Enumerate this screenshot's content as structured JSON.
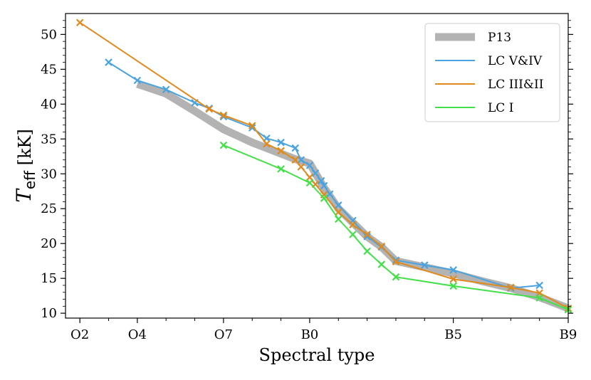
{
  "chart_data": {
    "type": "line",
    "xlabel": "Spectral type",
    "ylabel_main": "T",
    "ylabel_sub": "eff",
    "ylabel_unit": " [kK]",
    "xlim": [
      1.5,
      19
    ],
    "ylim": [
      9.3,
      53
    ],
    "x_ticks": [
      {
        "value": 2,
        "label": "O2"
      },
      {
        "value": 4,
        "label": "O4"
      },
      {
        "value": 7,
        "label": "O7"
      },
      {
        "value": 10,
        "label": "B0"
      },
      {
        "value": 15,
        "label": "B5"
      },
      {
        "value": 19,
        "label": "B9"
      }
    ],
    "x_minor_ticks": [
      3,
      5,
      6,
      8,
      9,
      11,
      12,
      13,
      14,
      16,
      17,
      18
    ],
    "y_ticks": [
      10,
      15,
      20,
      25,
      30,
      35,
      40,
      45,
      50
    ],
    "legend_position": "top-right",
    "series": [
      {
        "name": "P13",
        "color": "#b3b3b3",
        "style": "thick-band",
        "markers": false,
        "points": [
          [
            4,
            42.9
          ],
          [
            5,
            41.5
          ],
          [
            6,
            39.0
          ],
          [
            7,
            36.4
          ],
          [
            8,
            34.5
          ],
          [
            9,
            32.9
          ],
          [
            9.5,
            32.1
          ],
          [
            10,
            31.5
          ],
          [
            10.5,
            28.0
          ],
          [
            11,
            25.0
          ],
          [
            12,
            21.0
          ],
          [
            12.5,
            19.5
          ],
          [
            13,
            17.5
          ],
          [
            14,
            16.6
          ],
          [
            15,
            15.7
          ],
          [
            16,
            14.6
          ],
          [
            17,
            13.6
          ],
          [
            18,
            12.3
          ],
          [
            19,
            10.7
          ]
        ]
      },
      {
        "name": "LC V&IV",
        "color": "#4aa3df",
        "style": "line",
        "markers": true,
        "points": [
          [
            3,
            46.0
          ],
          [
            4,
            43.4
          ],
          [
            5,
            42.1
          ],
          [
            6,
            40.2
          ],
          [
            6.5,
            39.4
          ],
          [
            7,
            38.2
          ],
          [
            8,
            36.6
          ],
          [
            8.5,
            35.1
          ],
          [
            9,
            34.5
          ],
          [
            9.5,
            33.7
          ],
          [
            9.7,
            32.0
          ],
          [
            10,
            31.2
          ],
          [
            10.2,
            30.1
          ],
          [
            10.4,
            29.0
          ],
          [
            10.5,
            28.3
          ],
          [
            10.7,
            27.1
          ],
          [
            11,
            25.5
          ],
          [
            11.5,
            23.3
          ],
          [
            12,
            21.0
          ],
          [
            12.5,
            19.5
          ],
          [
            13,
            17.6
          ],
          [
            14,
            16.9
          ],
          [
            15,
            16.2
          ],
          [
            17,
            13.6
          ],
          [
            18,
            14.0
          ]
        ]
      },
      {
        "name": "LC III&II",
        "color": "#e08a1c",
        "style": "line",
        "markers": true,
        "points": [
          [
            2,
            51.7
          ],
          [
            6.5,
            39.3
          ],
          [
            7,
            38.4
          ],
          [
            8,
            36.9
          ],
          [
            8.5,
            34.3
          ],
          [
            9,
            33.3
          ],
          [
            9.5,
            32.0
          ],
          [
            9.7,
            31.0
          ],
          [
            10,
            29.5
          ],
          [
            10.2,
            28.5
          ],
          [
            10.5,
            27.0
          ],
          [
            11,
            24.5
          ],
          [
            11.5,
            22.7
          ],
          [
            12,
            21.3
          ],
          [
            12.5,
            19.6
          ],
          [
            13,
            17.4
          ],
          [
            15,
            14.9
          ],
          [
            17,
            13.7
          ],
          [
            18,
            12.9
          ],
          [
            19,
            10.7
          ]
        ]
      },
      {
        "name": "LC I",
        "color": "#44e04a",
        "style": "line",
        "markers": true,
        "points": [
          [
            7,
            34.1
          ],
          [
            9,
            30.7
          ],
          [
            10,
            28.7
          ],
          [
            10.5,
            26.5
          ],
          [
            11,
            23.5
          ],
          [
            11.5,
            21.3
          ],
          [
            12,
            18.9
          ],
          [
            12.5,
            17.0
          ],
          [
            13,
            15.2
          ],
          [
            15,
            13.9
          ],
          [
            18,
            12.2
          ],
          [
            19,
            10.5
          ]
        ]
      }
    ]
  }
}
